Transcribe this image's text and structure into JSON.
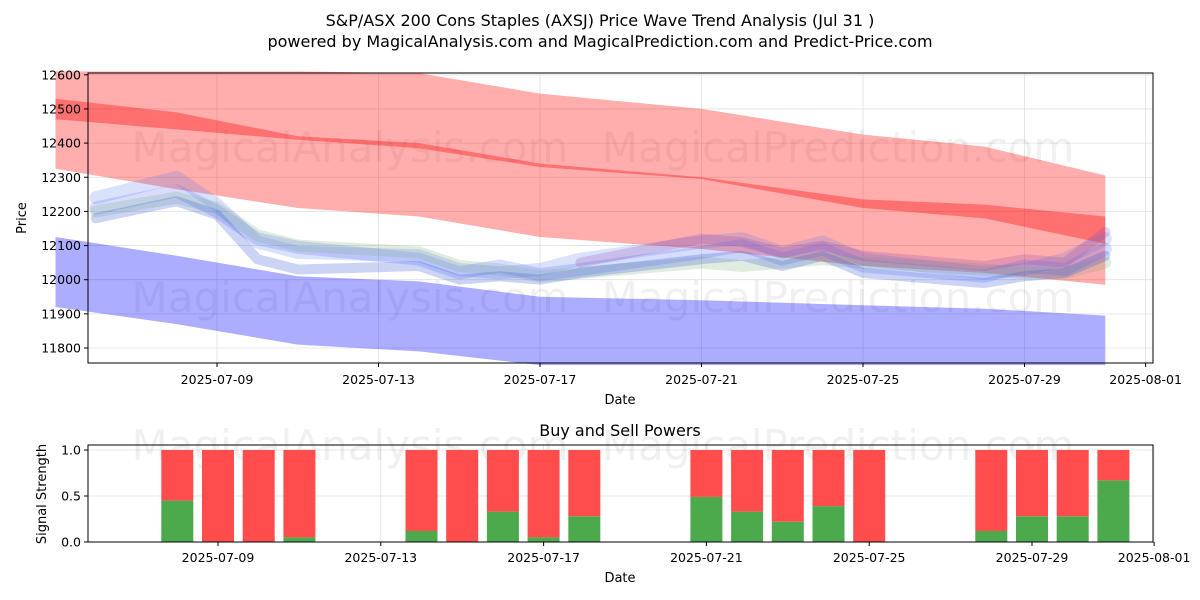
{
  "chart_data": [
    {
      "type": "area",
      "title": "S&P/ASX 200 Cons Staples (AXSJ) Price Wave Trend Analysis (Jul 31 )",
      "subtitle": "powered by MagicalAnalysis.com and MagicalPrediction.com and Predict-Price.com",
      "xlabel": "Date",
      "ylabel": "Price",
      "x_range": [
        "2025-07-05",
        "2025-08-01"
      ],
      "ylim": [
        11750,
        12610
      ],
      "yticks": [
        11800,
        11900,
        12000,
        12100,
        12200,
        12300,
        12400,
        12500,
        12600
      ],
      "xticks": [
        "2025-07-09",
        "2025-07-13",
        "2025-07-17",
        "2025-07-21",
        "2025-07-25",
        "2025-07-29",
        "2025-08-01"
      ],
      "grid": true,
      "bands": [
        {
          "name": "upper red band",
          "color": "#ff0000",
          "opacity": 0.32,
          "x": [
            "2025-07-05",
            "2025-07-08",
            "2025-07-11",
            "2025-07-14",
            "2025-07-17",
            "2025-07-21",
            "2025-07-25",
            "2025-07-28",
            "2025-07-31"
          ],
          "top": [
            12610,
            12610,
            12610,
            12605,
            12545,
            12500,
            12425,
            12390,
            12305
          ],
          "bottom": [
            12325,
            12265,
            12210,
            12185,
            12125,
            12090,
            12040,
            12020,
            11985
          ]
        },
        {
          "name": "red trend strip",
          "color": "#ff0000",
          "opacity": 0.35,
          "x": [
            "2025-07-05",
            "2025-07-08",
            "2025-07-11",
            "2025-07-14",
            "2025-07-17",
            "2025-07-21",
            "2025-07-25",
            "2025-07-28",
            "2025-07-31"
          ],
          "top": [
            12530,
            12490,
            12420,
            12400,
            12340,
            12300,
            12235,
            12220,
            12185
          ],
          "bottom": [
            12470,
            12440,
            12410,
            12385,
            12330,
            12295,
            12210,
            12180,
            12105
          ]
        },
        {
          "name": "lower blue band",
          "color": "#0000ff",
          "opacity": 0.32,
          "x": [
            "2025-07-05",
            "2025-07-08",
            "2025-07-11",
            "2025-07-14",
            "2025-07-17",
            "2025-07-21",
            "2025-07-25",
            "2025-07-28",
            "2025-07-31"
          ],
          "top": [
            12125,
            12070,
            12010,
            11995,
            11950,
            11940,
            11925,
            11915,
            11895
          ],
          "bottom": [
            11920,
            11870,
            11810,
            11790,
            11750,
            11750,
            11750,
            11750,
            11750
          ]
        }
      ],
      "wave_lines": [
        {
          "name": "wave 1",
          "color": "#4466ff",
          "opacity": 0.22,
          "width": 13,
          "x": [
            "2025-07-06",
            "2025-07-08",
            "2025-07-09",
            "2025-07-10",
            "2025-07-11",
            "2025-07-14",
            "2025-07-15",
            "2025-07-16",
            "2025-07-17",
            "2025-07-18",
            "2025-07-21",
            "2025-07-22",
            "2025-07-23",
            "2025-07-24",
            "2025-07-25",
            "2025-07-28",
            "2025-07-29",
            "2025-07-30",
            "2025-07-31"
          ],
          "y": [
            12210,
            12260,
            12200,
            12120,
            12095,
            12060,
            12020,
            12040,
            12015,
            12030,
            12080,
            12100,
            12060,
            12090,
            12040,
            12010,
            12040,
            12030,
            12090
          ]
        },
        {
          "name": "wave 2",
          "color": "#5577ee",
          "opacity": 0.22,
          "width": 13,
          "x": [
            "2025-07-06",
            "2025-07-08",
            "2025-07-09",
            "2025-07-10",
            "2025-07-11",
            "2025-07-14",
            "2025-07-15",
            "2025-07-16",
            "2025-07-17",
            "2025-07-18",
            "2025-07-21",
            "2025-07-22",
            "2025-07-23",
            "2025-07-24",
            "2025-07-25",
            "2025-07-28",
            "2025-07-29",
            "2025-07-30",
            "2025-07-31"
          ],
          "y": [
            12240,
            12300,
            12220,
            12110,
            12080,
            12070,
            12030,
            12020,
            12030,
            12060,
            12110,
            12120,
            12080,
            12110,
            12060,
            12020,
            12030,
            12060,
            12120
          ]
        },
        {
          "name": "wave 3",
          "color": "#77aa77",
          "opacity": 0.22,
          "width": 12,
          "x": [
            "2025-07-06",
            "2025-07-08",
            "2025-07-09",
            "2025-07-10",
            "2025-07-11",
            "2025-07-14",
            "2025-07-15",
            "2025-07-16",
            "2025-07-17",
            "2025-07-18",
            "2025-07-21",
            "2025-07-22",
            "2025-07-23",
            "2025-07-24",
            "2025-07-25",
            "2025-07-28",
            "2025-07-29",
            "2025-07-30",
            "2025-07-31"
          ],
          "y": [
            12200,
            12240,
            12210,
            12130,
            12100,
            12080,
            12040,
            12030,
            12010,
            12020,
            12050,
            12040,
            12050,
            12060,
            12050,
            12030,
            12020,
            12020,
            12050
          ]
        },
        {
          "name": "wave 4",
          "color": "#3355dd",
          "opacity": 0.25,
          "width": 10,
          "x": [
            "2025-07-06",
            "2025-07-08",
            "2025-07-09",
            "2025-07-10",
            "2025-07-11",
            "2025-07-14",
            "2025-07-15",
            "2025-07-16",
            "2025-07-17",
            "2025-07-18",
            "2025-07-21",
            "2025-07-22",
            "2025-07-23",
            "2025-07-24",
            "2025-07-25",
            "2025-07-28",
            "2025-07-29",
            "2025-07-30",
            "2025-07-31"
          ],
          "y": [
            12180,
            12230,
            12190,
            12060,
            12030,
            12040,
            12000,
            12010,
            12000,
            12020,
            12060,
            12070,
            12040,
            12070,
            12020,
            11990,
            12010,
            12020,
            12070
          ]
        },
        {
          "name": "wave 5",
          "color": "#8844aa",
          "opacity": 0.22,
          "width": 10,
          "x": [
            "2025-07-18",
            "2025-07-21",
            "2025-07-22",
            "2025-07-23",
            "2025-07-24",
            "2025-07-25",
            "2025-07-28",
            "2025-07-29",
            "2025-07-30",
            "2025-07-31"
          ],
          "y": [
            12050,
            12120,
            12110,
            12080,
            12100,
            12070,
            12040,
            12060,
            12050,
            12140
          ]
        }
      ],
      "watermarks": [
        "MagicalAnalysis.com",
        "MagicalPrediction.com",
        "MagicalAnalysis.com",
        "MagicalPrediction.com"
      ]
    },
    {
      "type": "bar",
      "title": "Buy and Sell Powers",
      "xlabel": "Date",
      "ylabel": "Signal Strength",
      "ylim": [
        0,
        1.05
      ],
      "yticks": [
        "0.0",
        "0.5",
        "1.0"
      ],
      "xticks": [
        "2025-07-09",
        "2025-07-13",
        "2025-07-17",
        "2025-07-21",
        "2025-07-25",
        "2025-07-29",
        "2025-08-01"
      ],
      "grid": true,
      "colors": {
        "buy": "#4caa4c",
        "sell": "#ff4c4c"
      },
      "dates": [
        "2025-07-08",
        "2025-07-09",
        "2025-07-10",
        "2025-07-11",
        "2025-07-14",
        "2025-07-15",
        "2025-07-16",
        "2025-07-17",
        "2025-07-18",
        "2025-07-21",
        "2025-07-22",
        "2025-07-23",
        "2025-07-24",
        "2025-07-25",
        "2025-07-28",
        "2025-07-29",
        "2025-07-30",
        "2025-07-31"
      ],
      "buy": [
        0.45,
        0.0,
        0.0,
        0.05,
        0.12,
        0.0,
        0.33,
        0.05,
        0.28,
        0.49,
        0.33,
        0.22,
        0.39,
        0.0,
        0.12,
        0.28,
        0.28,
        0.67
      ],
      "watermarks": [
        "MagicalAnalysis.com",
        "MagicalPrediction.com"
      ]
    }
  ]
}
